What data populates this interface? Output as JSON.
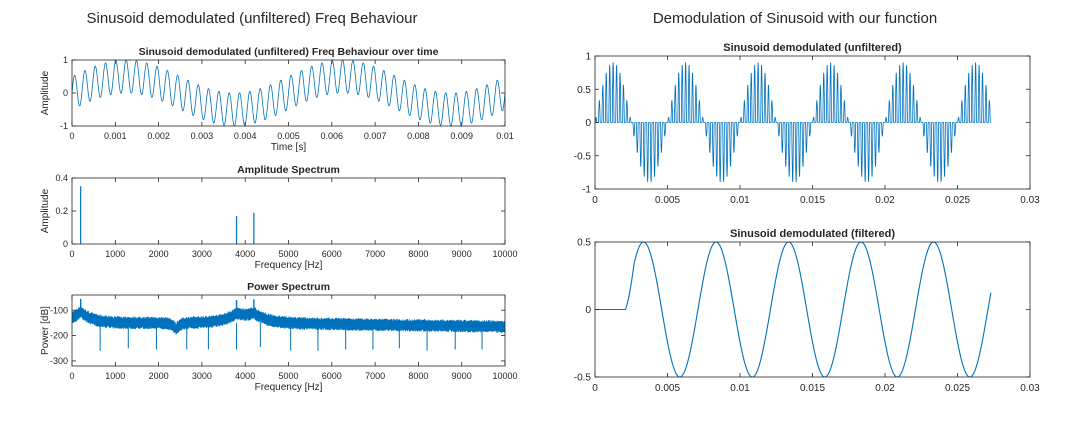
{
  "figure": {
    "left_title": "Sinusoid demodulated (unfiltered) Freq Behaviour",
    "right_title": "Demodulation of Sinusoid with our function",
    "line_color": "#0072BD"
  },
  "chart_data": [
    {
      "id": "time",
      "type": "line",
      "title": "Sinusoid demodulated (unfiltered) Freq Behaviour over time",
      "xlabel": "Time [s]",
      "ylabel": "Amplitude",
      "xlim": [
        0,
        0.01
      ],
      "ylim": [
        -1,
        1
      ],
      "xticks": [
        0,
        0.001,
        0.002,
        0.003,
        0.004,
        0.005,
        0.006,
        0.007,
        0.008,
        0.009,
        0.01
      ],
      "yticks": [
        -1,
        0,
        1
      ],
      "xticklabels": [
        "0",
        "0.001",
        "0.002",
        "0.003",
        "0.004",
        "0.005",
        "0.006",
        "0.007",
        "0.008",
        "0.009",
        "0.01"
      ],
      "yticklabels": [
        "-1",
        "0",
        "1"
      ],
      "series": [
        {
          "values_desc": "0.5 sin(2π·200t) + 0.5 sin(2π·4200t)",
          "carrier_hz": 4200,
          "baseband_hz": 200,
          "amplitude": 0.5
        }
      ]
    },
    {
      "id": "amp",
      "type": "bar",
      "title": "Amplitude Spectrum",
      "xlabel": "Frequency [Hz]",
      "ylabel": "Amplitude",
      "xlim": [
        0,
        10000
      ],
      "ylim": [
        0,
        0.4
      ],
      "xticks": [
        0,
        1000,
        2000,
        3000,
        4000,
        5000,
        6000,
        7000,
        8000,
        9000,
        10000
      ],
      "yticks": [
        0,
        0.2,
        0.4
      ],
      "xticklabels": [
        "0",
        "1000",
        "2000",
        "3000",
        "4000",
        "5000",
        "6000",
        "7000",
        "8000",
        "9000",
        "10000"
      ],
      "yticklabels": [
        "0",
        "0.2",
        "0.4"
      ],
      "x": [
        200,
        3800,
        4200
      ],
      "values": [
        0.35,
        0.17,
        0.19
      ]
    },
    {
      "id": "power",
      "type": "line",
      "title": "Power Spectrum",
      "xlabel": "Frequency [Hz]",
      "ylabel": "Power [dB]",
      "xlim": [
        0,
        10000
      ],
      "ylim": [
        -320,
        -40
      ],
      "xticks": [
        0,
        1000,
        2000,
        3000,
        4000,
        5000,
        6000,
        7000,
        8000,
        9000,
        10000
      ],
      "yticks": [
        -300,
        -200,
        -100
      ],
      "xticklabels": [
        "0",
        "1000",
        "2000",
        "3000",
        "4000",
        "5000",
        "6000",
        "7000",
        "8000",
        "9000",
        "10000"
      ],
      "yticklabels": [
        "-300",
        "-200",
        "-100"
      ],
      "peaks": [
        {
          "x": 200,
          "y": -55
        },
        {
          "x": 3800,
          "y": -60
        },
        {
          "x": 4200,
          "y": -57
        }
      ],
      "dips": [
        {
          "x": 650,
          "y": -260
        },
        {
          "x": 1300,
          "y": -250
        },
        {
          "x": 1950,
          "y": -255
        },
        {
          "x": 2650,
          "y": -255
        },
        {
          "x": 3150,
          "y": -255
        },
        {
          "x": 3800,
          "y": -255
        },
        {
          "x": 4350,
          "y": -245
        },
        {
          "x": 5050,
          "y": -260
        },
        {
          "x": 5680,
          "y": -260
        },
        {
          "x": 6320,
          "y": -255
        },
        {
          "x": 6950,
          "y": -255
        },
        {
          "x": 7560,
          "y": -250
        },
        {
          "x": 8200,
          "y": -260
        },
        {
          "x": 8850,
          "y": -255
        },
        {
          "x": 9470,
          "y": -255
        }
      ]
    },
    {
      "id": "unfiltered",
      "type": "line",
      "title": "Sinusoid demodulated (unfiltered)",
      "xlabel": "",
      "ylabel": "",
      "xlim": [
        0,
        0.03
      ],
      "ylim": [
        -1,
        1
      ],
      "xticks": [
        0,
        0.005,
        0.01,
        0.015,
        0.02,
        0.025,
        0.03
      ],
      "yticks": [
        -1,
        -0.5,
        0,
        0.5,
        1
      ],
      "xticklabels": [
        "0",
        "0.005",
        "0.01",
        "0.015",
        "0.02",
        "0.025",
        "0.03"
      ],
      "yticklabels": [
        "-1",
        "-0.5",
        "0",
        "0.5",
        "1"
      ],
      "series": [
        {
          "values_desc": "half-wave rectified carrier modulated by 200 Hz sinusoid",
          "x_end": 0.0273,
          "baseband_hz": 200,
          "amplitude": 0.9
        }
      ]
    },
    {
      "id": "filtered",
      "type": "line",
      "title": "Sinusoid demodulated (filtered)",
      "xlabel": "",
      "ylabel": "",
      "xlim": [
        0,
        0.03
      ],
      "ylim": [
        -0.5,
        0.5
      ],
      "xticks": [
        0,
        0.005,
        0.01,
        0.015,
        0.02,
        0.025,
        0.03
      ],
      "yticks": [
        -0.5,
        0,
        0.5
      ],
      "xticklabels": [
        "0",
        "0.005",
        "0.01",
        "0.015",
        "0.02",
        "0.025",
        "0.03"
      ],
      "yticklabels": [
        "-0.5",
        "0",
        "0.5"
      ],
      "series": [
        {
          "values_desc": "0.5·sin(2π·200(t−0.0021)) after filter delay",
          "x_end": 0.0273,
          "onset": 0.0015,
          "baseband_hz": 200,
          "amplitude": 0.5
        }
      ]
    }
  ]
}
